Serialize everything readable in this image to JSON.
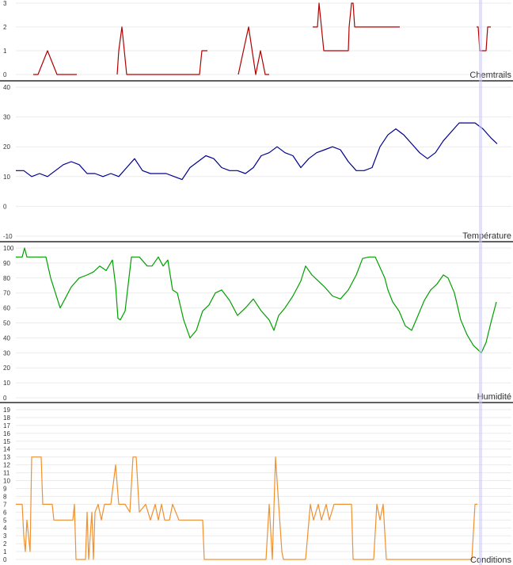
{
  "chart_data": [
    {
      "type": "line",
      "title": "Chemtrails",
      "color": "#b00000",
      "ylim": [
        0,
        3
      ],
      "yticks": [
        0,
        1,
        2,
        3
      ],
      "grid": true,
      "x": [
        0,
        42,
        48,
        60,
        72,
        97,
        136,
        139,
        140,
        148,
        150,
        154,
        160,
        185,
        221,
        252,
        255,
        262,
        290,
        301,
        314,
        323,
        329,
        335,
        340,
        354,
        395,
        401,
        403,
        406,
        409,
        412,
        440,
        441,
        444,
        446,
        448,
        505,
        516,
        518,
        520,
        522,
        602,
        604,
        606,
        608,
        610,
        612,
        614,
        616,
        620,
        625
      ],
      "y": [
        null,
        0,
        0,
        1,
        0,
        0,
        null,
        2,
        null,
        0,
        1,
        2,
        0,
        0,
        0,
        0,
        1,
        1,
        null,
        0,
        2,
        0,
        1,
        0,
        0,
        null,
        2,
        2,
        3,
        2,
        1,
        1,
        1,
        2,
        3,
        3,
        2,
        2,
        null,
        0,
        null,
        null,
        2,
        2,
        1,
        1,
        1,
        1,
        1,
        2,
        2,
        null
      ]
    },
    {
      "type": "line",
      "title": "Température",
      "color": "#000090",
      "ylim": [
        -10,
        40
      ],
      "yticks": [
        -10,
        0,
        10,
        20,
        30,
        40
      ],
      "grid": true,
      "x": [
        20,
        30,
        40,
        50,
        60,
        70,
        80,
        90,
        100,
        110,
        120,
        130,
        140,
        150,
        160,
        170,
        180,
        190,
        200,
        210,
        220,
        230,
        240,
        250,
        260,
        270,
        280,
        290,
        300,
        310,
        320,
        330,
        340,
        350,
        360,
        370,
        380,
        390,
        400,
        410,
        420,
        430,
        440,
        450,
        460,
        470,
        480,
        490,
        500,
        510,
        520,
        530,
        540,
        550,
        560,
        570,
        580,
        590,
        600,
        610,
        620,
        628
      ],
      "y": [
        12,
        12,
        10,
        11,
        10,
        12,
        14,
        15,
        14,
        11,
        11,
        10,
        11,
        10,
        13,
        16,
        12,
        11,
        11,
        11,
        10,
        9,
        13,
        15,
        17,
        16,
        13,
        12,
        12,
        11,
        13,
        17,
        18,
        20,
        18,
        17,
        13,
        16,
        18,
        19,
        20,
        19,
        15,
        12,
        12,
        13,
        20,
        24,
        26,
        24,
        21,
        18,
        16,
        18,
        22,
        25,
        28,
        28,
        28,
        26,
        23,
        21
      ]
    },
    {
      "type": "line",
      "title": "Humidité",
      "color": "#00a000",
      "ylim": [
        0,
        100
      ],
      "yticks": [
        0,
        10,
        20,
        30,
        40,
        50,
        60,
        70,
        80,
        90,
        100
      ],
      "grid": true,
      "x": [
        20,
        28,
        31,
        34,
        58,
        64,
        70,
        76,
        82,
        90,
        100,
        110,
        118,
        126,
        134,
        142,
        146,
        149,
        152,
        158,
        166,
        176,
        186,
        192,
        200,
        206,
        212,
        218,
        224,
        232,
        240,
        248,
        256,
        264,
        272,
        280,
        290,
        300,
        310,
        320,
        330,
        340,
        346,
        352,
        360,
        370,
        380,
        386,
        394,
        402,
        410,
        420,
        430,
        440,
        450,
        458,
        466,
        474,
        486,
        490,
        496,
        504,
        512,
        520,
        528,
        536,
        544,
        552,
        560,
        566,
        574,
        582,
        590,
        598,
        604,
        608,
        614,
        620,
        627
      ],
      "y": [
        94,
        94,
        100,
        94,
        94,
        80,
        70,
        60,
        66,
        74,
        80,
        82,
        84,
        88,
        85,
        92,
        75,
        53,
        52,
        58,
        94,
        94,
        88,
        88,
        94,
        88,
        92,
        72,
        70,
        52,
        40,
        45,
        58,
        62,
        70,
        72,
        65,
        55,
        60,
        66,
        58,
        52,
        45,
        55,
        60,
        68,
        78,
        88,
        82,
        78,
        74,
        68,
        66,
        72,
        82,
        93,
        94,
        94,
        80,
        72,
        64,
        58,
        48,
        45,
        55,
        65,
        72,
        76,
        82,
        80,
        70,
        52,
        42,
        35,
        32,
        30,
        37,
        50,
        64
      ]
    },
    {
      "type": "line",
      "title": "Conditions",
      "color": "#f09030",
      "ylim": [
        0,
        19
      ],
      "yticks": [
        0,
        1,
        2,
        3,
        4,
        5,
        6,
        7,
        8,
        9,
        10,
        11,
        12,
        13,
        14,
        15,
        16,
        17,
        18,
        19
      ],
      "grid": true,
      "x": [
        20,
        28,
        30,
        32,
        34,
        38,
        40,
        52,
        54,
        66,
        68,
        92,
        94,
        96,
        108,
        110,
        112,
        116,
        118,
        120,
        124,
        128,
        132,
        140,
        146,
        150,
        158,
        164,
        168,
        172,
        176,
        184,
        190,
        196,
        200,
        204,
        208,
        214,
        218,
        226,
        230,
        234,
        240,
        256,
        258,
        336,
        340,
        344,
        348,
        352,
        356,
        358,
        386,
        392,
        396,
        402,
        406,
        412,
        416,
        422,
        428,
        444,
        446,
        472,
        476,
        480,
        484,
        488,
        498,
        504,
        548,
        562,
        572,
        592,
        596,
        600,
        603
      ],
      "y": [
        7,
        7,
        3,
        1,
        5,
        1,
        13,
        13,
        7,
        7,
        5,
        5,
        7,
        0,
        0,
        6,
        0,
        6,
        0,
        6,
        7,
        5,
        7,
        7,
        12,
        7,
        7,
        6,
        13,
        13,
        6,
        7,
        5,
        7,
        5,
        7,
        5,
        5,
        7,
        5,
        5,
        5,
        5,
        5,
        0,
        0,
        7,
        0,
        13,
        7,
        1,
        0,
        0,
        7,
        5,
        7,
        5,
        7,
        5,
        7,
        7,
        7,
        0,
        0,
        7,
        5,
        7,
        0,
        0,
        0,
        0,
        0,
        0,
        0,
        0,
        7,
        7
      ]
    }
  ],
  "cursor": {
    "x": 607,
    "color": "#c8c8ff"
  },
  "colors": {
    "separator": "#000000",
    "grid": "#ebebeb",
    "tick_text": "#333333",
    "title_text": "#333333"
  }
}
